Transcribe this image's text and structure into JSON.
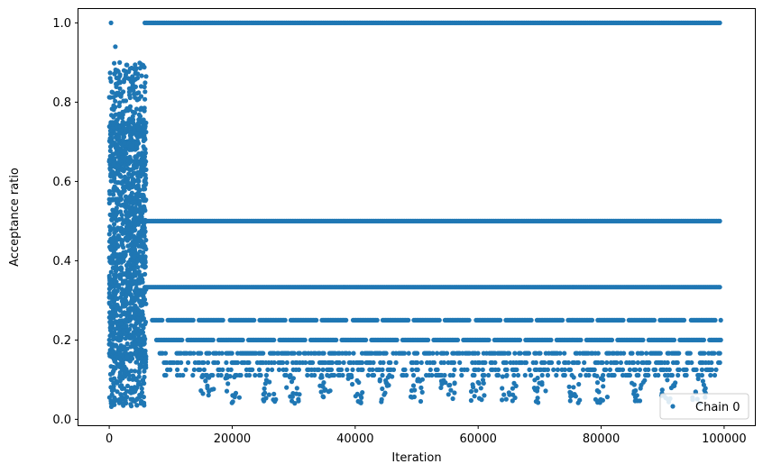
{
  "chart_data": {
    "type": "scatter",
    "title": "",
    "xlabel": "Iteration",
    "ylabel": "Acceptance ratio",
    "xlim": [
      -5000,
      105000
    ],
    "ylim": [
      -0.015,
      1.035
    ],
    "xticks": [
      0,
      20000,
      40000,
      60000,
      80000,
      100000
    ],
    "xtick_labels": [
      "0",
      "20000",
      "40000",
      "60000",
      "80000",
      "100000"
    ],
    "yticks": [
      0.0,
      0.2,
      0.4,
      0.6,
      0.8,
      1.0
    ],
    "ytick_labels": [
      "0.0",
      "0.2",
      "0.4",
      "0.6",
      "0.8",
      "1.0"
    ],
    "grid": false,
    "legend": {
      "position": "bottom-right",
      "entries": [
        "Chain 0"
      ]
    },
    "series": [
      {
        "name": "Chain 0",
        "color": "#1f77b4",
        "marker": "circle",
        "burn_in": {
          "x_range": [
            0,
            6000
          ],
          "y_range": [
            0.03,
            1.0
          ],
          "dense_band": [
            0.15,
            0.75
          ],
          "description_values": [
            1.0,
            0.94,
            0.9,
            0.88,
            0.86,
            0.84,
            0.05,
            0.04
          ]
        },
        "levels": [
          {
            "y": 1.0,
            "x_range": [
              5800,
              99500
            ],
            "continuous": true
          },
          {
            "y": 0.5,
            "x_range": [
              5800,
              99500
            ],
            "continuous": true
          },
          {
            "y": 0.3333,
            "x_range": [
              5800,
              99500
            ],
            "continuous": true
          },
          {
            "y": 0.25,
            "x_range": [
              7000,
              99500
            ],
            "continuous": false
          },
          {
            "y": 0.2,
            "x_range": [
              7000,
              99500
            ],
            "continuous": false
          },
          {
            "y": 0.1667,
            "x_range": [
              8000,
              99500
            ],
            "continuous": false
          },
          {
            "y": 0.1429,
            "x_range": [
              8000,
              99500
            ],
            "continuous": false
          },
          {
            "y": 0.125,
            "x_range": [
              9000,
              99500
            ],
            "continuous": false
          },
          {
            "y": 0.1111,
            "x_range": [
              9000,
              99500
            ],
            "continuous": false
          }
        ],
        "low_clusters_x": [
          16000,
          20000,
          26000,
          30000,
          35000,
          40000,
          45000,
          50000,
          55000,
          60000,
          65000,
          70000,
          76000,
          80000,
          86000,
          91000,
          96000
        ],
        "low_cluster_min_y": 0.04
      }
    ]
  }
}
